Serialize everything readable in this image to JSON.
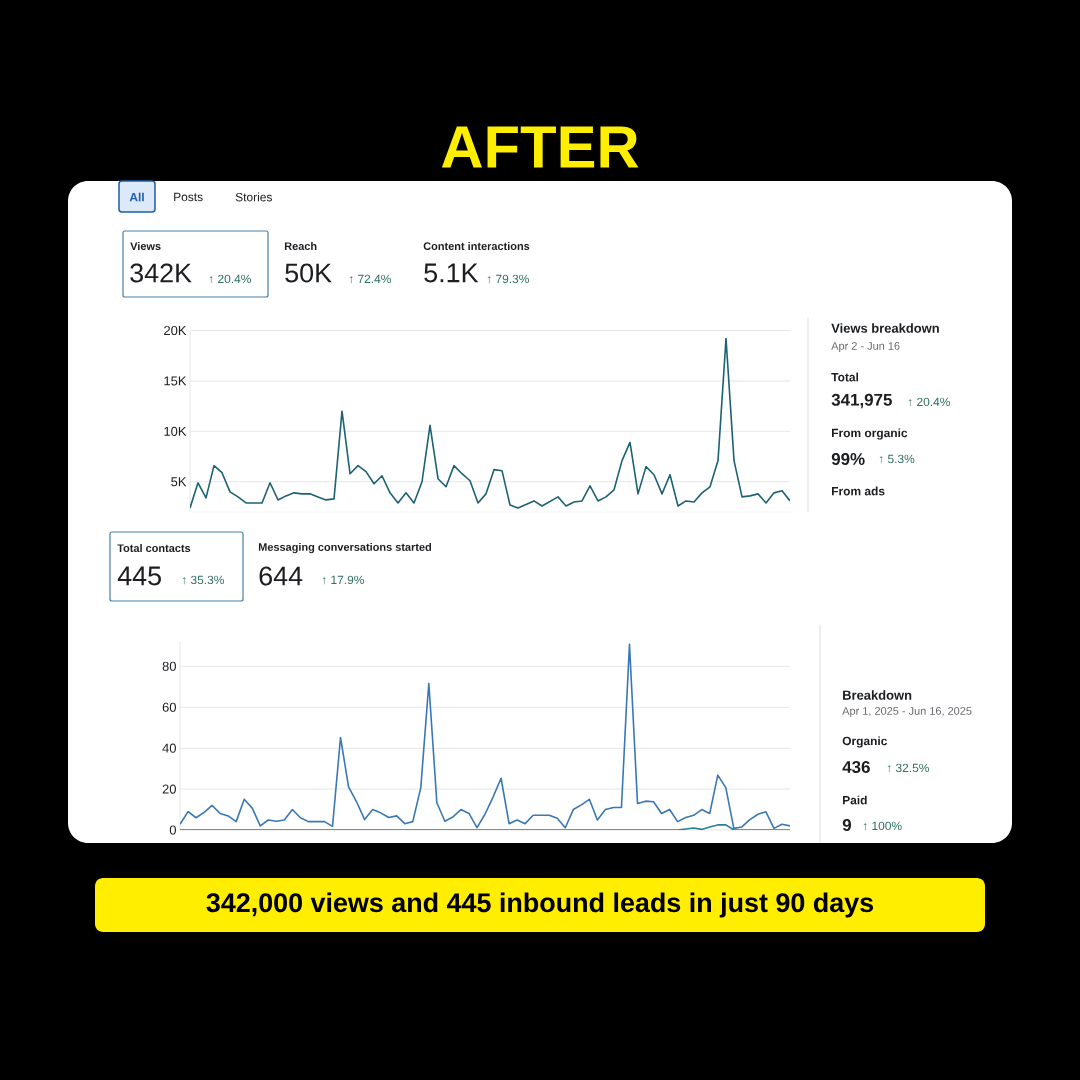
{
  "chart_data": [
    {
      "type": "line",
      "title": "AFTER",
      "categories": [
        null,
        null,
        null,
        null,
        null,
        null,
        null,
        null,
        null,
        null,
        null,
        null,
        null,
        null,
        null,
        null,
        null,
        null,
        null,
        null,
        null,
        null,
        null,
        null,
        null,
        null,
        null,
        null,
        null,
        null,
        null,
        null,
        null,
        null,
        null,
        null,
        null,
        null,
        null,
        null,
        null,
        null,
        null,
        null,
        null,
        null,
        null,
        null,
        null,
        null,
        null,
        null,
        null,
        null,
        null,
        null,
        null,
        null,
        null,
        null,
        null,
        null,
        null,
        null,
        null,
        null,
        null,
        null,
        null,
        null,
        null,
        null,
        null,
        null,
        null,
        null
      ],
      "series": [
        {
          "color": "#1d6273",
          "values": [
            2400,
            4900,
            3400,
            6600,
            5900,
            4000,
            3500,
            2900,
            null,
            2900,
            4900,
            3200,
            3600,
            3900,
            3800,
            3800,
            3500,
            3200,
            3300,
            12000,
            5800,
            6600,
            6000,
            4800,
            5600,
            3900,
            2900,
            3900,
            2900,
            5000,
            10600,
            5300,
            4500,
            6600,
            5800,
            5100,
            2900,
            3800,
            6200,
            6100,
            2700,
            2400,
            null,
            3100,
            2600,
            null,
            3500,
            2600,
            3000,
            3100,
            4600,
            3100,
            3500,
            4200,
            7100,
            8900,
            3800,
            6500,
            5700,
            3800,
            5700,
            2600,
            3100,
            3000,
            3900,
            4500,
            7100,
            19200,
            7100,
            3500,
            3600,
            3800,
            2900,
            3900,
            4100,
            3100
          ]
        }
      ],
      "ylim": [
        2000,
        20000
      ],
      "yticks": [
        {
          "value": 5000,
          "label": "5K"
        },
        {
          "value": 10000,
          "label": "10K"
        },
        {
          "value": 15000,
          "label": "15K"
        },
        {
          "value": 20000,
          "label": "20K"
        }
      ],
      "grid": "y",
      "annotations": [
        "All",
        "Posts",
        "Stories",
        "Views",
        "342K",
        "↑ 20.4%",
        "Reach",
        "50K",
        "↑ 72.4%",
        "Content interactions",
        "5.1K",
        "↑ 79.3%",
        "Views breakdown",
        "Apr 2 - Jun 16",
        "Total",
        "341,975",
        "↑ 20.4%",
        "From organic",
        "99%",
        "↑ 5.3%",
        "From ads"
      ]
    },
    {
      "type": "line",
      "categories": [
        null,
        null,
        null,
        null,
        null,
        null,
        null,
        null,
        null,
        null,
        null,
        null,
        null,
        null,
        null,
        null,
        null,
        null,
        null,
        null,
        null,
        null,
        null,
        null,
        null,
        null,
        null,
        null,
        null,
        null,
        null,
        null,
        null,
        null,
        null,
        null,
        null,
        null,
        null,
        null,
        null,
        null,
        null,
        null,
        null,
        null,
        null,
        null,
        null,
        null,
        null,
        null,
        null,
        null,
        null,
        null,
        null,
        null,
        null,
        null,
        null,
        null,
        null,
        null,
        null,
        null,
        null,
        null,
        null,
        null,
        null,
        null,
        null,
        null,
        null,
        null,
        null
      ],
      "series": [
        {
          "color": "#3a78b5",
          "values": [
            2.8,
            9.0,
            6.0,
            8.6,
            12.0,
            8.1,
            6.9,
            4.1,
            15.0,
            10.7,
            2.0,
            4.9,
            4.3,
            4.9,
            10.0,
            6.0,
            4.1,
            4.1,
            4.1,
            1.8,
            45.2,
            21.1,
            13.8,
            5.1,
            10.0,
            8.4,
            6.1,
            6.9,
            3.1,
            4.1,
            20.7,
            71.6,
            13.3,
            4.3,
            6.4,
            10.0,
            8.1,
            1.2,
            7.7,
            16.1,
            25.3,
            3.1,
            4.9,
            3.1,
            7.2,
            7.2,
            7.2,
            5.8,
            1.1,
            10.0,
            12.3,
            15.0,
            4.9,
            10.0,
            11.0,
            11.0,
            90.7,
            13.0,
            14.1,
            13.8,
            8.1,
            10.0,
            4.1,
            6.1,
            7.2,
            10.0,
            8.1,
            26.8,
            20.7,
            0.8,
            1.5,
            5.1,
            7.7,
            8.9,
            0.8,
            2.8,
            2.0
          ]
        },
        {
          "color": "#2a7f8f",
          "values": [
            0,
            0,
            0,
            0,
            0,
            0,
            0,
            0,
            0,
            0,
            0,
            0,
            0,
            0,
            0,
            0,
            0,
            0,
            0,
            0,
            0,
            0,
            0,
            0,
            0,
            0,
            0,
            0,
            0,
            0,
            0,
            0,
            0,
            0,
            0,
            0,
            0,
            0,
            0,
            0,
            0,
            0,
            0,
            0,
            0,
            0,
            0,
            0,
            0,
            0,
            0,
            0,
            0,
            0,
            0,
            0,
            0,
            0,
            0,
            0,
            0,
            0,
            0,
            0.5,
            1,
            0.3,
            1.5,
            2.5,
            2.5,
            0,
            0,
            0,
            0,
            0,
            0,
            0,
            0
          ]
        }
      ],
      "ylim": [
        0,
        92
      ],
      "yticks": [
        0,
        20,
        40,
        60,
        80
      ],
      "grid": "y",
      "annotations": [
        "Total contacts",
        "445",
        "↑ 35.3%",
        "Messaging conversations started",
        "644",
        "↑ 17.9%",
        "Breakdown",
        "Apr 1, 2025 - Jun 16, 2025",
        "Organic",
        "436",
        "↑ 32.5%",
        "Paid",
        "9",
        "↑ 100%",
        "342,000 views and 445 inbound leads in just 90 days"
      ]
    }
  ]
}
